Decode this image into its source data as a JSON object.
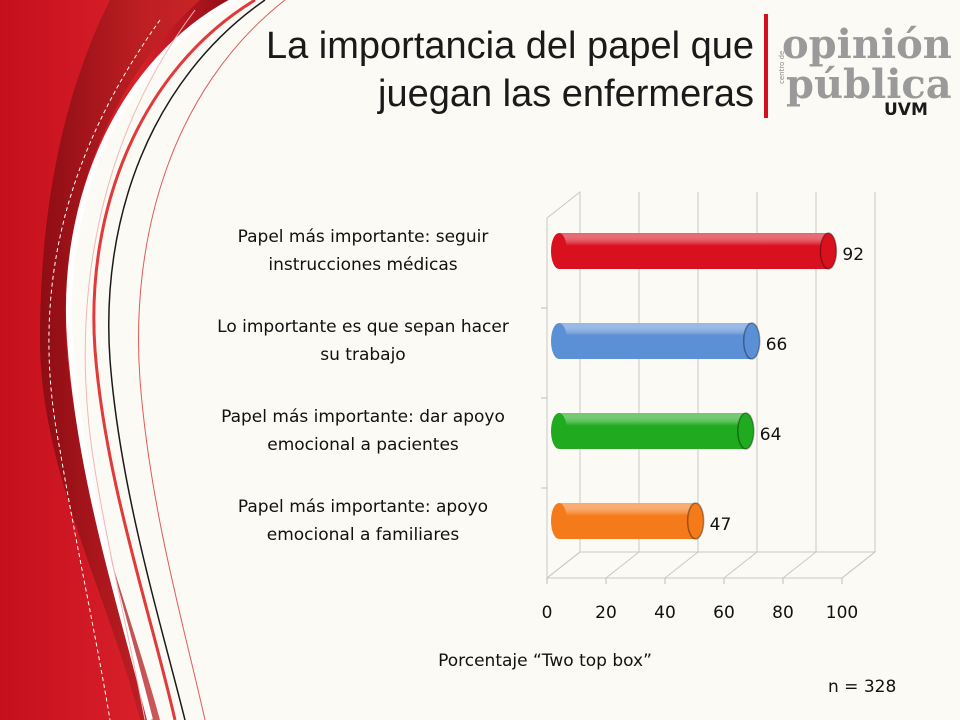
{
  "header": {
    "title_line1": "La importancia del papel que",
    "title_line2": "juegan las enfermeras"
  },
  "logo": {
    "word1": "opinión",
    "word2": "pública",
    "side_text": "centro de",
    "org": "UVM"
  },
  "chart_data": {
    "type": "bar",
    "orientation": "horizontal",
    "categories": [
      [
        "Papel más importante: seguir",
        "instrucciones médicas"
      ],
      [
        "Lo importante es que sepan hacer",
        "su trabajo"
      ],
      [
        "Papel más importante: dar apoyo",
        "emocional a pacientes"
      ],
      [
        "Papel más importante: apoyo",
        "emocional a familiares"
      ]
    ],
    "values": [
      92,
      66,
      64,
      47
    ],
    "data_labels": [
      "92",
      "66",
      "64",
      "47"
    ],
    "bar_colors": [
      "#d9111f",
      "#5b8fd6",
      "#1faa1f",
      "#f57a1a"
    ],
    "xlim": [
      0,
      100
    ],
    "xticks": [
      "0",
      "20",
      "40",
      "60",
      "80",
      "100"
    ],
    "xlabel": "Porcentaje “Two top box”",
    "grid": true
  },
  "footer": {
    "sample_size": "n = 328"
  },
  "colors": {
    "background": "#fbfaf4",
    "decor_red": "#c8111e",
    "logo_grey": "#9a9a9a",
    "logo_red": "#d3111d"
  }
}
